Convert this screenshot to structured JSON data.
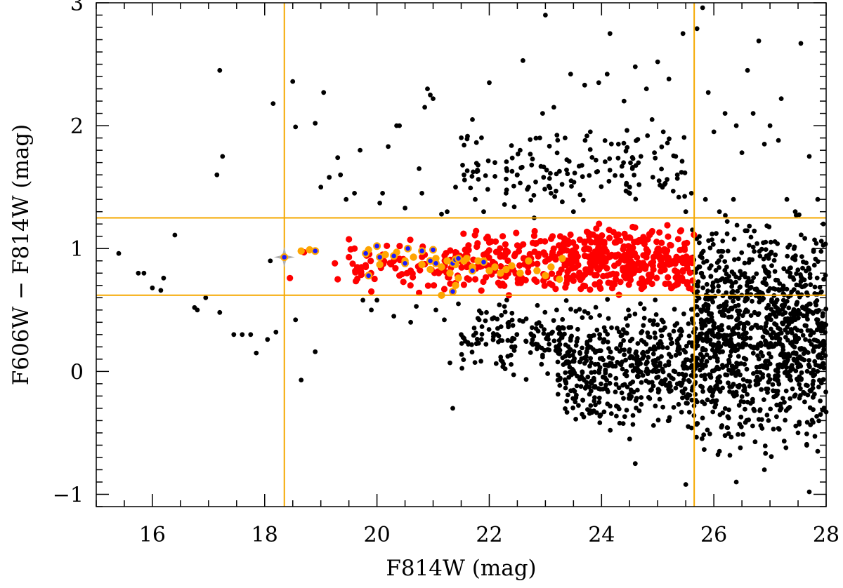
{
  "chart_data": {
    "type": "scatter",
    "title": "",
    "xlabel": "F814W (mag)",
    "ylabel": "F606W − F814W (mag)",
    "xlim": [
      15,
      28
    ],
    "ylim": [
      -1.1,
      3.0
    ],
    "xticks": [
      16,
      18,
      20,
      22,
      24,
      26,
      28
    ],
    "yticks": [
      -1,
      0,
      1,
      2,
      3
    ],
    "xtick_labels": [
      "16",
      "18",
      "20",
      "22",
      "24",
      "26",
      "28"
    ],
    "ytick_labels": [
      "−1",
      "0",
      "1",
      "2",
      "3"
    ],
    "grid": false,
    "legend": "none",
    "reference_lines": {
      "vertical": [
        18.35,
        25.65
      ],
      "horizontal": [
        0.62,
        1.25
      ],
      "color": "#f5a800"
    },
    "highlight_marker": {
      "shape": "four-point-star",
      "x": 18.35,
      "y": 0.93,
      "color": "#b0b0b0"
    },
    "colors": {
      "field": "#000000",
      "selected": "#ff0000",
      "candidates": "#ffa500",
      "confirmed": "#1a1aff",
      "confirmed_edge": "#ffa500"
    },
    "series": [
      {
        "key": "field",
        "color": "#000000",
        "points": [
          [
            15.4,
            0.96
          ],
          [
            15.75,
            0.8
          ],
          [
            15.85,
            0.8
          ],
          [
            16.0,
            0.68
          ],
          [
            16.15,
            0.66
          ],
          [
            16.2,
            0.76
          ],
          [
            16.4,
            1.11
          ],
          [
            16.75,
            0.52
          ],
          [
            16.8,
            0.5
          ],
          [
            16.95,
            0.6
          ],
          [
            17.15,
            1.6
          ],
          [
            17.2,
            2.45
          ],
          [
            17.25,
            1.75
          ],
          [
            17.2,
            0.48
          ],
          [
            17.45,
            0.3
          ],
          [
            17.6,
            0.3
          ],
          [
            17.75,
            0.3
          ],
          [
            17.85,
            0.15
          ],
          [
            18.05,
            0.26
          ],
          [
            18.15,
            2.18
          ],
          [
            18.1,
            0.9
          ],
          [
            18.2,
            0.32
          ],
          [
            18.5,
            2.36
          ],
          [
            18.55,
            1.99
          ],
          [
            18.55,
            0.42
          ],
          [
            18.65,
            -0.07
          ],
          [
            18.9,
            0.16
          ],
          [
            18.9,
            2.02
          ],
          [
            19.0,
            1.5
          ],
          [
            19.05,
            2.27
          ],
          [
            19.15,
            1.58
          ],
          [
            19.3,
            1.74
          ],
          [
            19.35,
            1.6
          ],
          [
            19.45,
            1.4
          ],
          [
            19.6,
            1.45
          ],
          [
            19.7,
            1.8
          ],
          [
            19.75,
            0.58
          ],
          [
            19.9,
            0.5
          ],
          [
            20.0,
            0.58
          ],
          [
            20.1,
            1.45
          ],
          [
            20.05,
            1.37
          ],
          [
            20.2,
            1.83
          ],
          [
            20.35,
            2.0
          ],
          [
            20.4,
            2.0
          ],
          [
            20.3,
            0.45
          ],
          [
            20.5,
            1.33
          ],
          [
            20.6,
            0.4
          ],
          [
            20.7,
            0.53
          ],
          [
            20.75,
            1.65
          ],
          [
            20.8,
            1.45
          ],
          [
            20.85,
            2.15
          ],
          [
            20.9,
            2.3
          ],
          [
            20.95,
            2.25
          ],
          [
            21.0,
            2.22
          ],
          [
            21.05,
            0.5
          ],
          [
            21.15,
            1.28
          ],
          [
            21.2,
            0.42
          ],
          [
            21.25,
            1.3
          ],
          [
            21.3,
            0.07
          ],
          [
            21.35,
            -0.3
          ],
          [
            21.4,
            1.5
          ],
          [
            21.45,
            0.55
          ],
          [
            21.5,
            0.3
          ],
          [
            21.55,
            1.6
          ],
          [
            21.7,
            2.05
          ],
          [
            21.75,
            1.4
          ],
          [
            21.8,
            1.68
          ],
          [
            21.9,
            1.3
          ],
          [
            21.95,
            0.48
          ],
          [
            22.0,
            2.35
          ],
          [
            22.1,
            1.7
          ],
          [
            22.15,
            0.35
          ],
          [
            22.3,
            1.45
          ],
          [
            22.35,
            0.4
          ],
          [
            22.4,
            0.2
          ],
          [
            22.5,
            1.6
          ],
          [
            22.55,
            1.8
          ],
          [
            22.6,
            2.53
          ],
          [
            22.7,
            1.5
          ],
          [
            22.75,
            0.3
          ],
          [
            22.8,
            1.25
          ],
          [
            22.9,
            1.9
          ],
          [
            22.95,
            2.1
          ],
          [
            23.0,
            2.9
          ],
          [
            23.05,
            0.3
          ],
          [
            23.1,
            1.45
          ],
          [
            23.15,
            2.15
          ],
          [
            23.2,
            0.5
          ],
          [
            23.3,
            1.38
          ],
          [
            23.35,
            1.9
          ],
          [
            23.45,
            2.42
          ],
          [
            23.5,
            1.3
          ],
          [
            23.6,
            1.67
          ],
          [
            23.7,
            2.33
          ],
          [
            23.8,
            1.95
          ],
          [
            23.9,
            1.72
          ],
          [
            23.95,
            2.35
          ],
          [
            24.1,
            2.42
          ],
          [
            24.15,
            2.75
          ],
          [
            24.3,
            1.85
          ],
          [
            24.4,
            2.2
          ],
          [
            24.5,
            1.5
          ],
          [
            24.6,
            2.48
          ],
          [
            24.7,
            1.75
          ],
          [
            24.8,
            2.3
          ],
          [
            24.9,
            2.05
          ],
          [
            25.0,
            2.52
          ],
          [
            25.1,
            1.95
          ],
          [
            25.2,
            2.38
          ],
          [
            25.35,
            1.6
          ],
          [
            25.45,
            2.75
          ],
          [
            25.5,
            1.3
          ],
          [
            25.6,
            1.45
          ],
          [
            25.7,
            2.79
          ],
          [
            25.8,
            2.96
          ],
          [
            25.85,
            1.4
          ],
          [
            25.9,
            2.27
          ],
          [
            26.0,
            1.95
          ],
          [
            26.1,
            1.3
          ],
          [
            26.2,
            2.1
          ],
          [
            26.35,
            1.4
          ],
          [
            26.4,
            2.0
          ],
          [
            26.5,
            1.78
          ],
          [
            26.6,
            2.45
          ],
          [
            26.7,
            2.1
          ],
          [
            26.8,
            2.69
          ],
          [
            26.9,
            1.85
          ],
          [
            27.0,
            2.0
          ],
          [
            27.15,
            1.88
          ],
          [
            27.2,
            2.22
          ],
          [
            27.3,
            1.4
          ],
          [
            27.45,
            1.3
          ],
          [
            27.55,
            2.67
          ],
          [
            27.7,
            1.75
          ],
          [
            27.85,
            1.4
          ],
          [
            27.95,
            1.2
          ],
          [
            26.1,
            -0.65
          ],
          [
            26.4,
            -0.9
          ],
          [
            25.5,
            -0.92
          ],
          [
            24.6,
            -0.75
          ],
          [
            24.5,
            -0.55
          ],
          [
            26.9,
            -0.8
          ],
          [
            27.2,
            -0.3
          ],
          [
            27.5,
            -0.5
          ],
          [
            27.7,
            -0.98
          ],
          [
            27.85,
            -0.65
          ],
          [
            27.9,
            -0.35
          ],
          [
            27.95,
            0.06
          ],
          [
            26.0,
            -0.15
          ],
          [
            25.2,
            -0.4
          ]
        ],
        "cloud": [
          {
            "x": [
              21.5,
              23.5
            ],
            "y": [
              -0.1,
              0.6
            ],
            "n": 130
          },
          {
            "x": [
              23.2,
              25.7
            ],
            "y": [
              -0.5,
              0.6
            ],
            "n": 520
          },
          {
            "x": [
              25.6,
              28.0
            ],
            "y": [
              -0.7,
              1.3
            ],
            "n": 1100
          },
          {
            "x": [
              21.5,
              25.5
            ],
            "y": [
              1.3,
              2.0
            ],
            "n": 140
          }
        ]
      },
      {
        "key": "selected",
        "color": "#ff0000",
        "points": [
          [
            18.45,
            0.76
          ],
          [
            18.7,
            0.97
          ],
          [
            19.25,
            0.88
          ],
          [
            19.3,
            0.75
          ],
          [
            19.5,
            0.93
          ],
          [
            19.6,
            1.0
          ],
          [
            19.8,
            0.85
          ],
          [
            19.9,
            0.65
          ],
          [
            20.1,
            0.95
          ],
          [
            20.3,
            0.9
          ],
          [
            20.4,
            0.78
          ],
          [
            20.6,
            0.82
          ],
          [
            20.75,
            0.64
          ],
          [
            20.85,
            0.95
          ],
          [
            21.1,
            0.8
          ],
          [
            21.2,
            0.67
          ],
          [
            21.4,
            0.72
          ],
          [
            21.6,
            0.85
          ],
          [
            21.75,
            0.75
          ],
          [
            21.9,
            0.95
          ],
          [
            22.0,
            1.05
          ],
          [
            22.2,
            0.7
          ],
          [
            22.35,
            0.62
          ],
          [
            22.45,
            0.94
          ]
        ],
        "cloud": [
          {
            "x": [
              19.5,
              21.5
            ],
            "y": [
              0.65,
              1.1
            ],
            "n": 70
          },
          {
            "x": [
              21.5,
              23.5
            ],
            "y": [
              0.62,
              1.18
            ],
            "n": 150
          },
          {
            "x": [
              23.3,
              25.65
            ],
            "y": [
              0.62,
              1.22
            ],
            "n": 320
          }
        ]
      },
      {
        "key": "candidates",
        "color": "#ffa500",
        "points": [
          [
            18.65,
            0.98
          ],
          [
            18.8,
            0.99
          ],
          [
            19.85,
            0.99
          ],
          [
            20.05,
            0.87
          ],
          [
            20.15,
            0.95
          ],
          [
            20.35,
            0.97
          ],
          [
            20.5,
            0.9
          ],
          [
            20.65,
            0.93
          ],
          [
            20.8,
            0.87
          ],
          [
            20.95,
            0.83
          ],
          [
            21.05,
            0.92
          ],
          [
            21.15,
            0.85
          ],
          [
            21.25,
            0.9
          ],
          [
            21.3,
            0.8
          ],
          [
            21.4,
            0.87
          ],
          [
            21.45,
            0.76
          ],
          [
            21.55,
            0.9
          ],
          [
            21.6,
            0.92
          ],
          [
            21.7,
            0.85
          ],
          [
            21.8,
            0.9
          ],
          [
            21.9,
            0.9
          ],
          [
            22.0,
            0.82
          ],
          [
            22.1,
            0.85
          ],
          [
            22.2,
            0.8
          ],
          [
            22.3,
            0.83
          ],
          [
            22.4,
            0.86
          ],
          [
            22.55,
            0.8
          ],
          [
            22.7,
            0.9
          ],
          [
            22.85,
            0.82
          ],
          [
            23.0,
            0.78
          ],
          [
            23.1,
            0.85
          ],
          [
            23.25,
            0.75
          ],
          [
            23.3,
            0.92
          ],
          [
            21.15,
            0.62
          ],
          [
            21.4,
            0.7
          ]
        ]
      },
      {
        "key": "confirmed",
        "color": "#1a1aff",
        "points": [
          [
            18.35,
            0.93
          ],
          [
            18.9,
            0.98
          ],
          [
            19.8,
            0.96
          ],
          [
            19.85,
            0.78
          ],
          [
            20.0,
            1.02
          ],
          [
            20.05,
            0.93
          ],
          [
            20.3,
            0.94
          ],
          [
            20.5,
            0.88
          ],
          [
            20.55,
            1.0
          ],
          [
            20.8,
            0.98
          ],
          [
            20.95,
            0.9
          ],
          [
            21.0,
            0.99
          ],
          [
            21.05,
            0.88
          ],
          [
            21.35,
            0.88
          ],
          [
            21.4,
            0.91
          ],
          [
            21.45,
            0.92
          ],
          [
            21.7,
            0.82
          ],
          [
            21.9,
            0.89
          ],
          [
            21.35,
            0.65
          ]
        ]
      }
    ]
  }
}
